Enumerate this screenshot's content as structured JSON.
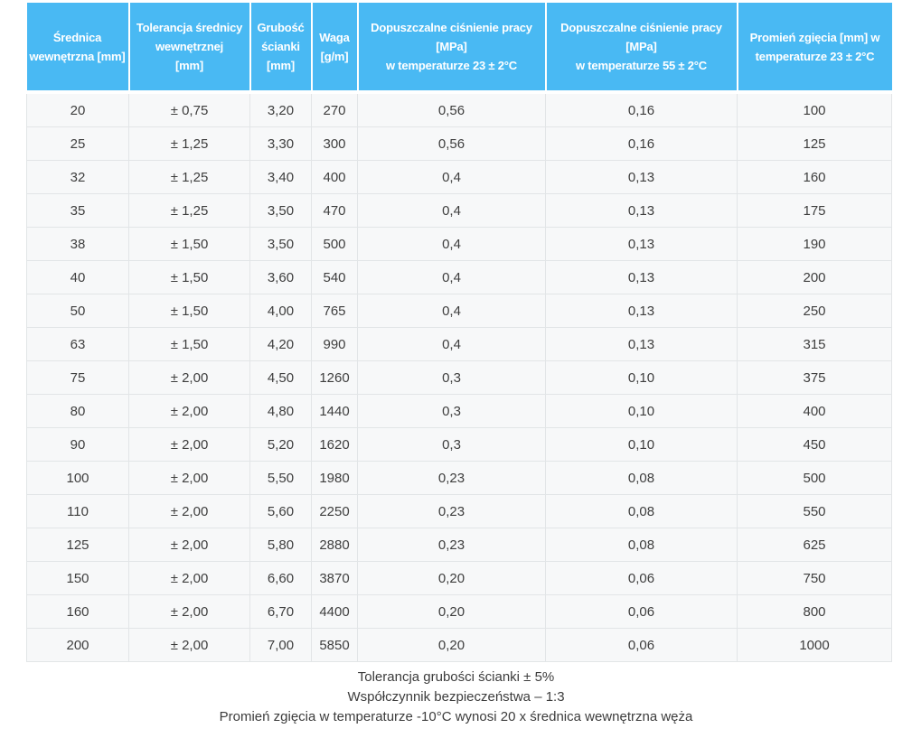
{
  "chart_data": {
    "type": "table",
    "columns": [
      "Średnica wewnętrzna [mm]",
      "Tolerancja średnicy wewnętrznej [mm]",
      "Grubość ścianki [mm]",
      "Waga [g/m]",
      "Dopuszczalne ciśnienie pracy [MPa] w temperaturze 23 ± 2°C",
      "Dopuszczalne ciśnienie pracy [MPa] w temperaturze 55 ± 2°C",
      "Promień zgięcia [mm] w temperaturze 23 ± 2°C"
    ],
    "rows": [
      [
        "20",
        "± 0,75",
        "3,20",
        "270",
        "0,56",
        "0,16",
        "100"
      ],
      [
        "25",
        "± 1,25",
        "3,30",
        "300",
        "0,56",
        "0,16",
        "125"
      ],
      [
        "32",
        "± 1,25",
        "3,40",
        "400",
        "0,4",
        "0,13",
        "160"
      ],
      [
        "35",
        "± 1,25",
        "3,50",
        "470",
        "0,4",
        "0,13",
        "175"
      ],
      [
        "38",
        "± 1,50",
        "3,50",
        "500",
        "0,4",
        "0,13",
        "190"
      ],
      [
        "40",
        "± 1,50",
        "3,60",
        "540",
        "0,4",
        "0,13",
        "200"
      ],
      [
        "50",
        "± 1,50",
        "4,00",
        "765",
        "0,4",
        "0,13",
        "250"
      ],
      [
        "63",
        "± 1,50",
        "4,20",
        "990",
        "0,4",
        "0,13",
        "315"
      ],
      [
        "75",
        "± 2,00",
        "4,50",
        "1260",
        "0,3",
        "0,10",
        "375"
      ],
      [
        "80",
        "± 2,00",
        "4,80",
        "1440",
        "0,3",
        "0,10",
        "400"
      ],
      [
        "90",
        "± 2,00",
        "5,20",
        "1620",
        "0,3",
        "0,10",
        "450"
      ],
      [
        "100",
        "± 2,00",
        "5,50",
        "1980",
        "0,23",
        "0,08",
        "500"
      ],
      [
        "110",
        "± 2,00",
        "5,60",
        "2250",
        "0,23",
        "0,08",
        "550"
      ],
      [
        "125",
        "± 2,00",
        "5,80",
        "2880",
        "0,23",
        "0,08",
        "625"
      ],
      [
        "150",
        "± 2,00",
        "6,60",
        "3870",
        "0,20",
        "0,06",
        "750"
      ],
      [
        "160",
        "± 2,00",
        "6,70",
        "4400",
        "0,20",
        "0,06",
        "800"
      ],
      [
        "200",
        "± 2,00",
        "7,00",
        "5850",
        "0,20",
        "0,06",
        "1000"
      ]
    ],
    "annotations": [
      "Tolerancja grubości ścianki ± 5%",
      "Współczynnik bezpieczeństwa – 1:3",
      "Promień zgięcia w temperaturze -10°C wynosi 20 x średnica wewnętrzna węża"
    ],
    "legend_position": "none",
    "grid": true
  },
  "table": {
    "header_display": [
      "Średnica\nwewnętrzna [mm]",
      "Tolerancja średnicy\nwewnętrznej\n[mm]",
      "Grubość\nścianki\n[mm]",
      "Waga\n[g/m]",
      "Dopuszczalne ciśnienie pracy [MPa]\nw temperaturze 23 ± 2°C",
      "Dopuszczalne ciśnienie pracy [MPa]\nw temperaturze 55 ± 2°C",
      "Promień zgięcia [mm] w\ntemperaturze 23 ± 2°C"
    ]
  },
  "theme": {
    "header_bg": "#49b9f3",
    "header_text": "#ffffff",
    "row_bg": "#f7f8f9",
    "border": "#e2e5e7",
    "body_text": "#3e3e3e"
  }
}
